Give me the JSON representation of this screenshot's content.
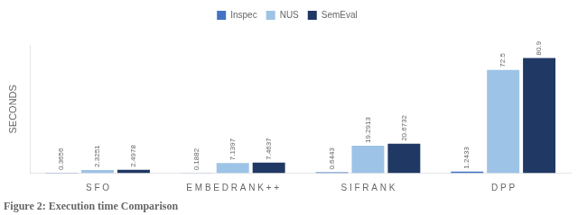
{
  "chart_data": {
    "type": "bar",
    "title": "Figure 2: Execution time Comparison",
    "ylabel": "SECONDS",
    "categories": [
      "S F O",
      "E M B E D R A N K + +",
      "S I F R A N K",
      "D P P"
    ],
    "series": [
      {
        "name": "Inspec",
        "color": "#4472c4",
        "values": [
          0.3656,
          0.1882,
          0.6443,
          1.2433
        ]
      },
      {
        "name": "NUS",
        "color": "#9dc3e6",
        "values": [
          2.3251,
          7.1397,
          19.2913,
          72.5
        ]
      },
      {
        "name": "SemEval",
        "color": "#203864",
        "values": [
          2.4978,
          7.4637,
          20.6732,
          80.9
        ]
      }
    ],
    "ylim": [
      0,
      90
    ],
    "grid": false,
    "legend": "upper center",
    "data_labels": true,
    "tick_labels": "x"
  }
}
